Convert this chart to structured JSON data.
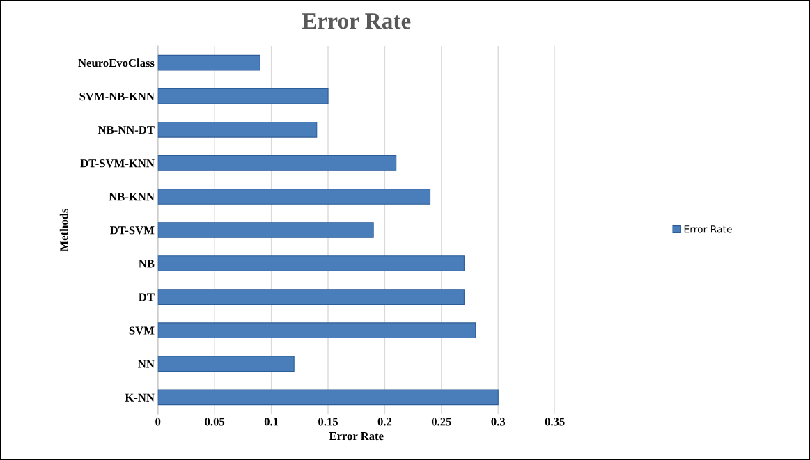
{
  "chart_data": {
    "type": "bar",
    "orientation": "horizontal",
    "title": "Error Rate",
    "xlabel": "Error Rate",
    "ylabel": "Methods",
    "categories": [
      "NeuroEvoClass",
      "SVM-NB-KNN",
      "NB-NN-DT",
      "DT-SVM-KNN",
      "NB-KNN",
      "DT-SVM",
      "NB",
      "DT",
      "SVM",
      "NN",
      "K-NN"
    ],
    "series": [
      {
        "name": "Error Rate",
        "color": "#4a7ebb",
        "values": [
          0.09,
          0.15,
          0.14,
          0.21,
          0.24,
          0.19,
          0.27,
          0.27,
          0.28,
          0.12,
          0.3
        ]
      }
    ],
    "xlim": [
      0,
      0.35
    ],
    "xticks": [
      0,
      0.05,
      0.1,
      0.15,
      0.2,
      0.25,
      0.3,
      0.35
    ],
    "grid": "x",
    "legend": "right"
  }
}
